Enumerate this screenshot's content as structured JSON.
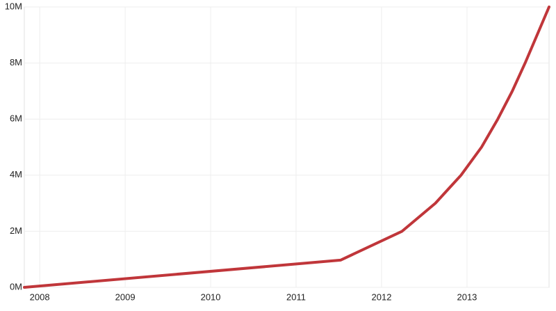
{
  "chart_data": {
    "type": "line",
    "x": [
      2007.82,
      2011.52,
      2012.24,
      2012.63,
      2012.93,
      2013.17,
      2013.36,
      2013.53,
      2013.68,
      2013.96
    ],
    "series": [
      {
        "color": "#c0363a",
        "values": [
          0,
          970000,
          2000000,
          3000000,
          4000000,
          5000000,
          6000000,
          7000000,
          8000000,
          10000000
        ]
      }
    ],
    "xlim": [
      2007.82,
      2013.96
    ],
    "xticks": [
      2008,
      2009,
      2010,
      2011,
      2012,
      2013
    ],
    "ylim": [
      0,
      10000000
    ],
    "yticks": [
      {
        "value": 0,
        "label": "0M"
      },
      {
        "value": 2000000,
        "label": "2M"
      },
      {
        "value": 4000000,
        "label": "4M"
      },
      {
        "value": 6000000,
        "label": "6M"
      },
      {
        "value": 8000000,
        "label": "8M"
      },
      {
        "value": 10000000,
        "label": "10M"
      }
    ],
    "grid": true
  }
}
